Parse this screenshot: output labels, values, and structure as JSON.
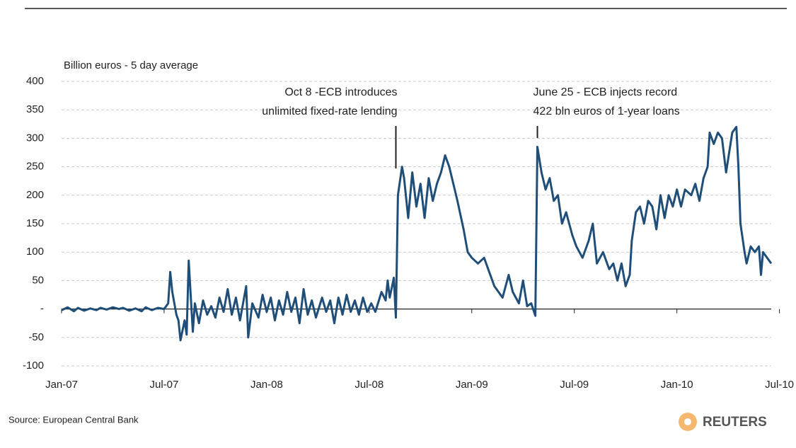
{
  "chart_data": {
    "type": "line",
    "subtitle": "Billion euros - 5 day average",
    "source": "Source: European Central Bank",
    "logo": "REUTERS",
    "annotations": [
      {
        "x": 2008.63,
        "lines": [
          "Oct 8 -ECB introduces",
          "unlimited fixed-rate lending"
        ]
      },
      {
        "x": 2009.32,
        "lines": [
          "June 25 - ECB injects record",
          "422 bln euros of 1-year loans"
        ]
      }
    ],
    "xlim": [
      2007,
      2010.46
    ],
    "xticks": [
      {
        "value": 2007,
        "label": "Jan-07"
      },
      {
        "value": 2007.5,
        "label": "Jul-07"
      },
      {
        "value": 2008,
        "label": "Jan-08"
      },
      {
        "value": 2008.5,
        "label": "Jul-08"
      },
      {
        "value": 2009,
        "label": "Jan-09"
      },
      {
        "value": 2009.5,
        "label": "Jul-09"
      },
      {
        "value": 2010,
        "label": "Jan-10"
      },
      {
        "value": 2010.5,
        "label": "Jul-10"
      }
    ],
    "ylim": [
      -100,
      400
    ],
    "yticks": [
      -100,
      -50,
      {
        "value": 0,
        "label": "-"
      },
      50,
      100,
      150,
      200,
      250,
      300,
      350,
      400
    ],
    "grid": true,
    "series": [
      {
        "color": "#1f4e79",
        "x": [
          2007.0,
          2007.03,
          2007.06,
          2007.08,
          2007.11,
          2007.14,
          2007.17,
          2007.19,
          2007.22,
          2007.25,
          2007.28,
          2007.3,
          2007.33,
          2007.36,
          2007.39,
          2007.41,
          2007.44,
          2007.47,
          2007.5,
          2007.52,
          2007.53,
          2007.54,
          2007.56,
          2007.57,
          2007.58,
          2007.6,
          2007.61,
          2007.62,
          2007.64,
          2007.65,
          2007.67,
          2007.69,
          2007.71,
          2007.73,
          2007.75,
          2007.77,
          2007.79,
          2007.81,
          2007.83,
          2007.85,
          2007.87,
          2007.9,
          2007.91,
          2007.93,
          2007.96,
          2007.98,
          2008.0,
          2008.02,
          2008.04,
          2008.06,
          2008.08,
          2008.1,
          2008.12,
          2008.14,
          2008.16,
          2008.18,
          2008.2,
          2008.22,
          2008.24,
          2008.27,
          2008.29,
          2008.31,
          2008.33,
          2008.35,
          2008.37,
          2008.39,
          2008.41,
          2008.43,
          2008.45,
          2008.47,
          2008.49,
          2008.51,
          2008.53,
          2008.56,
          2008.58,
          2008.59,
          2008.6,
          2008.62,
          2008.63,
          2008.64,
          2008.66,
          2008.67,
          2008.69,
          2008.71,
          2008.73,
          2008.75,
          2008.77,
          2008.79,
          2008.81,
          2008.83,
          2008.85,
          2008.87,
          2008.89,
          2008.91,
          2008.93,
          2008.96,
          2008.98,
          2009.0,
          2009.03,
          2009.06,
          2009.09,
          2009.11,
          2009.15,
          2009.18,
          2009.2,
          2009.23,
          2009.25,
          2009.27,
          2009.29,
          2009.31,
          2009.32,
          2009.34,
          2009.36,
          2009.38,
          2009.4,
          2009.42,
          2009.44,
          2009.46,
          2009.49,
          2009.51,
          2009.54,
          2009.57,
          2009.59,
          2009.61,
          2009.64,
          2009.67,
          2009.69,
          2009.71,
          2009.73,
          2009.75,
          2009.77,
          2009.78,
          2009.8,
          2009.82,
          2009.84,
          2009.86,
          2009.88,
          2009.9,
          2009.92,
          2009.94,
          2009.96,
          2009.98,
          2010.0,
          2010.02,
          2010.04,
          2010.07,
          2010.09,
          2010.11,
          2010.13,
          2010.15,
          2010.16,
          2010.18,
          2010.2,
          2010.22,
          2010.24,
          2010.27,
          2010.29,
          2010.3,
          2010.31,
          2010.33,
          2010.34,
          2010.36,
          2010.38,
          2010.4,
          2010.41,
          2010.42,
          2010.44,
          2010.46
        ],
        "values": [
          -2,
          3,
          -4,
          2,
          -3,
          1,
          -2,
          2,
          -1,
          3,
          0,
          2,
          -3,
          1,
          -4,
          3,
          -2,
          2,
          0,
          10,
          65,
          30,
          -10,
          -20,
          -55,
          -20,
          -45,
          85,
          -40,
          10,
          -25,
          15,
          -10,
          5,
          -15,
          20,
          -5,
          35,
          -10,
          20,
          -20,
          40,
          -50,
          10,
          -15,
          25,
          -5,
          20,
          -20,
          15,
          -10,
          30,
          -5,
          20,
          -25,
          35,
          -10,
          15,
          -15,
          20,
          -5,
          15,
          -25,
          20,
          -10,
          25,
          -5,
          15,
          -10,
          20,
          -5,
          10,
          -5,
          30,
          15,
          50,
          20,
          55,
          -15,
          200,
          250,
          230,
          160,
          240,
          180,
          220,
          160,
          230,
          190,
          220,
          240,
          270,
          250,
          220,
          190,
          140,
          100,
          90,
          80,
          90,
          60,
          40,
          20,
          60,
          30,
          10,
          50,
          5,
          10,
          -12,
          285,
          240,
          210,
          230,
          190,
          200,
          150,
          170,
          130,
          110,
          90,
          120,
          150,
          80,
          100,
          70,
          80,
          50,
          80,
          40,
          60,
          120,
          170,
          180,
          150,
          190,
          180,
          140,
          200,
          160,
          200,
          180,
          210,
          180,
          210,
          200,
          220,
          190,
          230,
          250,
          310,
          290,
          310,
          300,
          240,
          310,
          320,
          250,
          150,
          100,
          80,
          110,
          100,
          110,
          60,
          100,
          90,
          80
        ]
      }
    ]
  }
}
